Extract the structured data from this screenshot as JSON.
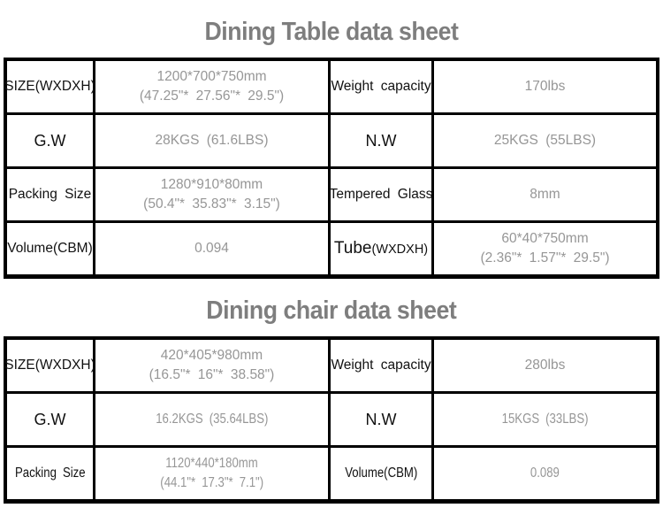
{
  "colors": {
    "border": "#000000",
    "label_text": "#111111",
    "value_text": "#969696",
    "title_text": "#7e7e7e",
    "background": "#ffffff"
  },
  "tables": [
    {
      "title": "Dining Table data sheet",
      "rows": [
        {
          "cells": [
            {
              "type": "label",
              "lines": [
                "SIZE(WXDXH)"
              ]
            },
            {
              "type": "value",
              "lines": [
                "1200*700*750mm",
                "(47.25\"* 27.56\"* 29.5\")"
              ]
            },
            {
              "type": "label",
              "lines": [
                "Weight capacity"
              ]
            },
            {
              "type": "value",
              "lines": [
                "170lbs"
              ]
            }
          ]
        },
        {
          "cells": [
            {
              "type": "label",
              "size": "lg",
              "lines": [
                "G.W"
              ]
            },
            {
              "type": "value",
              "lines": [
                "28KGS (61.6LBS)"
              ]
            },
            {
              "type": "label",
              "size": "lg",
              "lines": [
                "N.W"
              ]
            },
            {
              "type": "value",
              "lines": [
                "25KGS (55LBS)"
              ]
            }
          ]
        },
        {
          "cells": [
            {
              "type": "label",
              "lines": [
                "Packing Size"
              ]
            },
            {
              "type": "value",
              "lines": [
                "1280*910*80mm",
                "(50.4\"* 35.83\"* 3.15\")"
              ]
            },
            {
              "type": "label",
              "lines": [
                "Tempered Glass"
              ]
            },
            {
              "type": "value",
              "lines": [
                "8mm"
              ]
            }
          ]
        },
        {
          "cells": [
            {
              "type": "label",
              "lines": [
                "Volume(CBM)"
              ]
            },
            {
              "type": "value",
              "lines": [
                "0.094"
              ]
            },
            {
              "type": "label",
              "parts": [
                {
                  "text": "Tube",
                  "size": "lg"
                },
                {
                  "text": "(WXDXH)",
                  "size": "sm"
                }
              ]
            },
            {
              "type": "value",
              "lines": [
                "60*40*750mm",
                "(2.36\"* 1.57\"* 29.5\")"
              ]
            }
          ]
        }
      ]
    },
    {
      "title": "Dining chair data sheet",
      "rows": [
        {
          "cells": [
            {
              "type": "label",
              "lines": [
                "SIZE(WXDXH)"
              ]
            },
            {
              "type": "value",
              "lines": [
                "420*405*980mm",
                "(16.5\"* 16\"* 38.58\")"
              ]
            },
            {
              "type": "label",
              "lines": [
                "Weight capacity"
              ]
            },
            {
              "type": "value",
              "lines": [
                "280lbs"
              ]
            }
          ]
        },
        {
          "cells": [
            {
              "type": "label",
              "size": "lg",
              "lines": [
                "G.W"
              ]
            },
            {
              "type": "value",
              "lines": [
                "16.2KGS (35.64LBS)"
              ]
            },
            {
              "type": "label",
              "size": "lg",
              "lines": [
                "N.W"
              ]
            },
            {
              "type": "value",
              "lines": [
                "15KGS (33LBS)"
              ]
            }
          ]
        },
        {
          "cells": [
            {
              "type": "label",
              "lines": [
                "Packing Size"
              ]
            },
            {
              "type": "value",
              "lines": [
                "1120*440*180mm",
                "(44.1\"* 17.3\"* 7.1\")"
              ]
            },
            {
              "type": "label",
              "lines": [
                "Volume(CBM)"
              ]
            },
            {
              "type": "value",
              "lines": [
                "0.089"
              ]
            }
          ]
        }
      ]
    }
  ]
}
